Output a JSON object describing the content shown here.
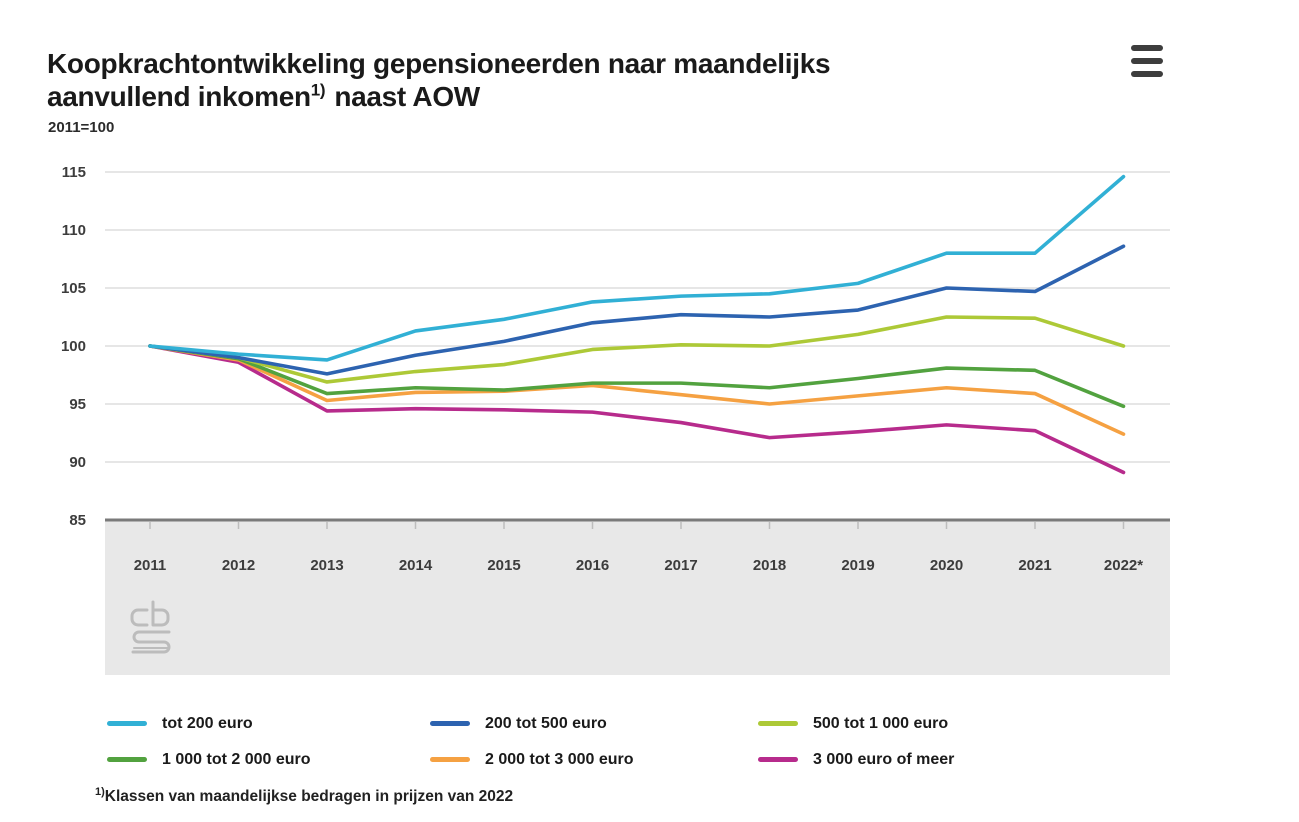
{
  "header": {
    "title_line1": "Koopkrachtontwikkeling gepensioneerden naar maandelijks",
    "title_line2_pre": "aanvullend inkomen",
    "title_superscript": "1)",
    "title_line2_post": "naast AOW",
    "unit_label": "2011=100"
  },
  "chart_data": {
    "type": "line",
    "title": "Koopkrachtontwikkeling gepensioneerden naar maandelijks aanvullend inkomen 1) naast AOW",
    "subtitle": "2011=100",
    "x": [
      "2011",
      "2012",
      "2013",
      "2014",
      "2015",
      "2016",
      "2017",
      "2018",
      "2019",
      "2020",
      "2021",
      "2022*"
    ],
    "ylim": [
      85,
      115
    ],
    "yticks": [
      85,
      90,
      95,
      100,
      105,
      110,
      115
    ],
    "grid": true,
    "legend_position": "bottom",
    "series": [
      {
        "name": "tot 200 euro",
        "color": "#31b0d5",
        "values": [
          100,
          99.3,
          98.8,
          101.3,
          102.3,
          103.8,
          104.3,
          104.5,
          105.4,
          108.0,
          108.0,
          114.6
        ]
      },
      {
        "name": "200 tot 500 euro",
        "color": "#2d63b0",
        "values": [
          100,
          99.0,
          97.6,
          99.2,
          100.4,
          102.0,
          102.7,
          102.5,
          103.1,
          105.0,
          104.7,
          108.6
        ]
      },
      {
        "name": "500 tot 1 000 euro",
        "color": "#adc937",
        "values": [
          100,
          99.0,
          96.9,
          97.8,
          98.4,
          99.7,
          100.1,
          100.0,
          101.0,
          102.5,
          102.4,
          100.0
        ]
      },
      {
        "name": "1 000 tot 2 000 euro",
        "color": "#52a23f",
        "values": [
          100,
          98.9,
          95.9,
          96.4,
          96.2,
          96.8,
          96.8,
          96.4,
          97.2,
          98.1,
          97.9,
          94.8
        ]
      },
      {
        "name": "2 000 tot 3 000 euro",
        "color": "#f5a142",
        "values": [
          100,
          98.8,
          95.3,
          96.0,
          96.1,
          96.6,
          95.8,
          95.0,
          95.7,
          96.4,
          95.9,
          92.4
        ]
      },
      {
        "name": "3 000 euro of meer",
        "color": "#b72b8c",
        "values": [
          100,
          98.6,
          94.4,
          94.6,
          94.5,
          94.3,
          93.4,
          92.1,
          92.6,
          93.2,
          92.7,
          89.1
        ]
      }
    ]
  },
  "footnote": {
    "superscript": "1)",
    "text": "Klassen van maandelijkse bedragen in prijzen van 2022"
  },
  "style": {
    "grid_color": "#dedede",
    "axis_color": "#7a7a7a",
    "band_color": "#e8e8e8",
    "tick_color": "#bdbdbd",
    "axis_label_color": "#3c3c3c",
    "logo_color": "#bcbcbc"
  }
}
